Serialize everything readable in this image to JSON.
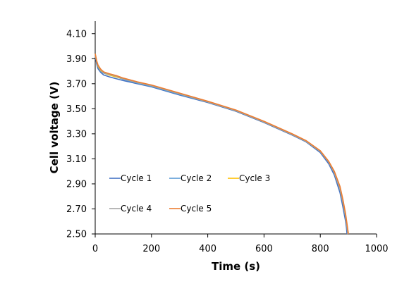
{
  "chart_data": {
    "type": "line",
    "title": "",
    "xlabel": "Time (s)",
    "ylabel": "Cell voltage (V)",
    "xlim": [
      0,
      1000
    ],
    "ylim": [
      2.5,
      4.2
    ],
    "x_ticks": [
      "0",
      "200",
      "400",
      "600",
      "800",
      "1000"
    ],
    "y_ticks": [
      "2.50",
      "2.70",
      "2.90",
      "3.10",
      "3.30",
      "3.50",
      "3.70",
      "3.90",
      "4.10"
    ],
    "x_tick_values": [
      0,
      200,
      400,
      600,
      800,
      1000
    ],
    "y_tick_values": [
      2.5,
      2.7,
      2.9,
      3.1,
      3.3,
      3.5,
      3.7,
      3.9,
      4.1
    ],
    "grid": false,
    "legend_position": "inside-bottom-left",
    "series": [
      {
        "name": "Cycle 1",
        "color": "#4472C4",
        "x": [
          0,
          5,
          10,
          20,
          30,
          50,
          75,
          100,
          150,
          200,
          300,
          400,
          500,
          600,
          700,
          750,
          800,
          830,
          850,
          870,
          880,
          890,
          893,
          895
        ],
        "y": [
          3.93,
          3.86,
          3.82,
          3.79,
          3.77,
          3.755,
          3.74,
          3.725,
          3.7,
          3.675,
          3.61,
          3.55,
          3.48,
          3.39,
          3.29,
          3.235,
          3.15,
          3.06,
          2.97,
          2.83,
          2.72,
          2.6,
          2.55,
          2.5
        ]
      },
      {
        "name": "Cycle 2",
        "color": "#5B9BD5",
        "x": [
          0,
          5,
          10,
          20,
          30,
          50,
          75,
          100,
          150,
          200,
          300,
          400,
          500,
          600,
          700,
          750,
          800,
          830,
          850,
          870,
          880,
          890,
          895,
          898
        ],
        "y": [
          3.94,
          3.88,
          3.84,
          3.8,
          3.785,
          3.77,
          3.755,
          3.735,
          3.705,
          3.68,
          3.615,
          3.555,
          3.485,
          3.395,
          3.295,
          3.24,
          3.16,
          3.075,
          2.99,
          2.86,
          2.76,
          2.64,
          2.56,
          2.5
        ]
      },
      {
        "name": "Cycle 3",
        "color": "#FFC000",
        "x": [
          0,
          5,
          10,
          20,
          30,
          50,
          75,
          100,
          150,
          200,
          300,
          400,
          500,
          600,
          700,
          750,
          800,
          830,
          850,
          870,
          880,
          890,
          895,
          898
        ],
        "y": [
          3.94,
          3.88,
          3.84,
          3.805,
          3.79,
          3.77,
          3.755,
          3.74,
          3.71,
          3.685,
          3.62,
          3.555,
          3.485,
          3.395,
          3.295,
          3.24,
          3.16,
          3.075,
          2.99,
          2.86,
          2.76,
          2.64,
          2.56,
          2.5
        ]
      },
      {
        "name": "Cycle 4",
        "color": "#A5A5A5",
        "x": [
          0,
          5,
          10,
          20,
          30,
          50,
          75,
          100,
          150,
          200,
          300,
          400,
          500,
          600,
          700,
          750,
          800,
          830,
          850,
          870,
          880,
          890,
          895,
          898
        ],
        "y": [
          3.94,
          3.88,
          3.845,
          3.81,
          3.79,
          3.775,
          3.76,
          3.74,
          3.71,
          3.685,
          3.62,
          3.555,
          3.485,
          3.395,
          3.295,
          3.24,
          3.16,
          3.075,
          2.99,
          2.86,
          2.76,
          2.64,
          2.56,
          2.5
        ]
      },
      {
        "name": "Cycle 5",
        "color": "#ED7D31",
        "x": [
          0,
          5,
          10,
          20,
          30,
          50,
          75,
          100,
          150,
          200,
          300,
          400,
          500,
          600,
          700,
          750,
          800,
          830,
          850,
          870,
          880,
          890,
          895,
          900
        ],
        "y": [
          3.94,
          3.885,
          3.85,
          3.815,
          3.795,
          3.78,
          3.765,
          3.745,
          3.715,
          3.69,
          3.625,
          3.56,
          3.49,
          3.4,
          3.3,
          3.245,
          3.165,
          3.08,
          3.0,
          2.88,
          2.78,
          2.66,
          2.58,
          2.5
        ]
      }
    ]
  }
}
